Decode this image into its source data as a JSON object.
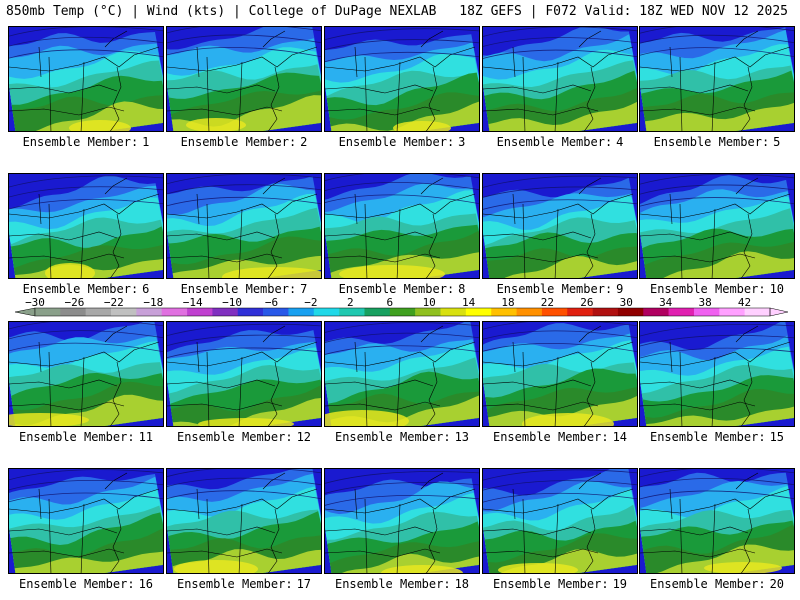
{
  "header": {
    "left": "850mb Temp (°C) | Wind (kts) | College of DuPage NEXLAB",
    "right": "18Z GEFS | F072 Valid: 18Z WED NOV 12 2025"
  },
  "member_label_prefix": "Ensemble Member:",
  "members": [
    "1",
    "2",
    "3",
    "4",
    "5",
    "6",
    "7",
    "8",
    "9",
    "10",
    "11",
    "12",
    "13",
    "14",
    "15",
    "16",
    "17",
    "18",
    "19",
    "20"
  ],
  "colorbar": {
    "tick_labels": [
      "−30",
      "−26",
      "−22",
      "−18",
      "−14",
      "−10",
      "−6",
      "−2",
      "2",
      "6",
      "10",
      "14",
      "18",
      "22",
      "26",
      "30",
      "34",
      "38",
      "42"
    ],
    "colors": [
      "#8aa08a",
      "#8c8c8c",
      "#a8a8a8",
      "#c0c0c0",
      "#c8a0d8",
      "#e070e0",
      "#c040d0",
      "#8030c0",
      "#3030d8",
      "#2858e8",
      "#18a0f0",
      "#20d8e8",
      "#20c8b0",
      "#18a060",
      "#40a020",
      "#90c020",
      "#d8e010",
      "#ffff00",
      "#ffc000",
      "#ff9000",
      "#ff5000",
      "#e02010",
      "#b01010",
      "#900000",
      "#b00060",
      "#e020b0",
      "#f060f0",
      "#ffa0ff",
      "#ffd0ff"
    ]
  },
  "palette": {
    "deep_blue": "#1a1ad0",
    "blue": "#2a6ae8",
    "light_blue": "#2ab0f0",
    "cyan": "#30e0e0",
    "teal": "#30c0a8",
    "green": "#1a9a3a",
    "dark_green": "#2a8a2a",
    "yellow_green": "#a8d030",
    "yellow": "#e8e820"
  }
}
